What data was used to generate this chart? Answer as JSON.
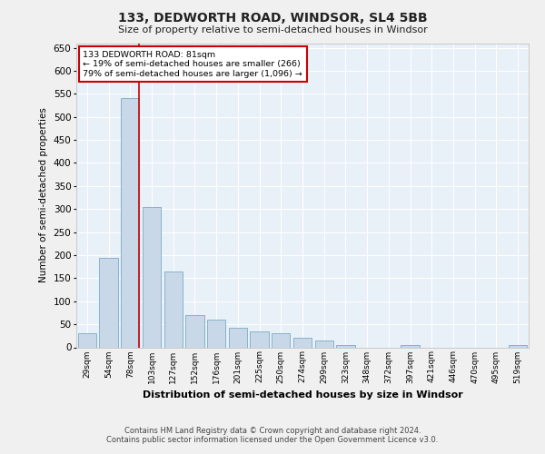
{
  "title": "133, DEDWORTH ROAD, WINDSOR, SL4 5BB",
  "subtitle": "Size of property relative to semi-detached houses in Windsor",
  "xlabel": "Distribution of semi-detached houses by size in Windsor",
  "ylabel": "Number of semi-detached properties",
  "bar_color": "#c8d8e8",
  "bar_edge_color": "#7aaac8",
  "background_color": "#e8f0f8",
  "grid_color": "#ffffff",
  "categories": [
    "29sqm",
    "54sqm",
    "78sqm",
    "103sqm",
    "127sqm",
    "152sqm",
    "176sqm",
    "201sqm",
    "225sqm",
    "250sqm",
    "274sqm",
    "299sqm",
    "323sqm",
    "348sqm",
    "372sqm",
    "397sqm",
    "421sqm",
    "446sqm",
    "470sqm",
    "495sqm",
    "519sqm"
  ],
  "values": [
    30,
    195,
    540,
    305,
    165,
    70,
    60,
    43,
    35,
    30,
    20,
    15,
    5,
    0,
    0,
    5,
    0,
    0,
    0,
    0,
    5
  ],
  "highlight_bar_index": 2,
  "annotation_title": "133 DEDWORTH ROAD: 81sqm",
  "annotation_line1": "← 19% of semi-detached houses are smaller (266)",
  "annotation_line2": "79% of semi-detached houses are larger (1,096) →",
  "annotation_box_color": "#ffffff",
  "annotation_box_edge_color": "#cc0000",
  "annotation_line_color": "#cc0000",
  "ylim": [
    0,
    660
  ],
  "yticks": [
    0,
    50,
    100,
    150,
    200,
    250,
    300,
    350,
    400,
    450,
    500,
    550,
    600,
    650
  ],
  "fig_bg_color": "#f0f0f0",
  "footer_line1": "Contains HM Land Registry data © Crown copyright and database right 2024.",
  "footer_line2": "Contains public sector information licensed under the Open Government Licence v3.0."
}
